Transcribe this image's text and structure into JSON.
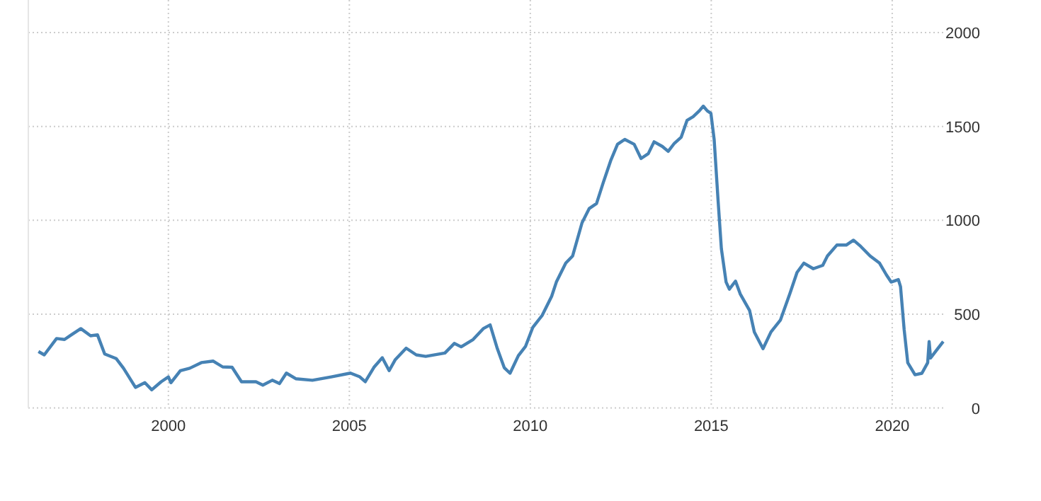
{
  "chart_data": {
    "type": "line",
    "x": [
      1996.41,
      1996.57,
      1996.91,
      1997.13,
      1997.32,
      1997.58,
      1997.85,
      1998.04,
      1998.24,
      1998.56,
      1998.76,
      1999.09,
      1999.35,
      1999.54,
      1999.8,
      2000.0,
      2000.07,
      2000.33,
      2000.59,
      2000.91,
      2001.24,
      2001.5,
      2001.76,
      2002.02,
      2002.42,
      2002.61,
      2002.87,
      2003.07,
      2003.26,
      2003.52,
      2003.98,
      2004.5,
      2005.03,
      2005.29,
      2005.44,
      2005.68,
      2005.91,
      2006.1,
      2006.27,
      2006.57,
      2006.85,
      2007.11,
      2007.64,
      2007.9,
      2008.09,
      2008.42,
      2008.7,
      2008.89,
      2009.09,
      2009.28,
      2009.44,
      2009.67,
      2009.87,
      2010.07,
      2010.33,
      2010.59,
      2010.72,
      2010.98,
      2011.17,
      2011.43,
      2011.63,
      2011.83,
      2012.02,
      2012.22,
      2012.41,
      2012.61,
      2012.87,
      2013.06,
      2013.26,
      2013.42,
      2013.65,
      2013.81,
      2013.98,
      2014.17,
      2014.33,
      2014.5,
      2014.67,
      2014.78,
      2014.89,
      2014.99,
      2015.08,
      2015.19,
      2015.28,
      2015.41,
      2015.5,
      2015.67,
      2015.8,
      2016.06,
      2016.19,
      2016.43,
      2016.65,
      2016.91,
      2017.17,
      2017.37,
      2017.56,
      2017.82,
      2018.08,
      2018.21,
      2018.47,
      2018.73,
      2018.93,
      2019.13,
      2019.39,
      2019.65,
      2019.84,
      2019.97,
      2020.17,
      2020.23,
      2020.33,
      2020.43,
      2020.63,
      2020.82,
      2020.98,
      2021.02,
      2021.06,
      2021.21,
      2021.41
    ],
    "series": [
      {
        "color": "#4682b4",
        "values": [
          301,
          283,
          370,
          365,
          390,
          423,
          385,
          390,
          288,
          263,
          212,
          110,
          135,
          97,
          140,
          166,
          135,
          199,
          212,
          242,
          250,
          219,
          217,
          140,
          140,
          122,
          148,
          130,
          186,
          156,
          148,
          166,
          186,
          166,
          140,
          217,
          268,
          199,
          258,
          319,
          283,
          275,
          293,
          344,
          326,
          365,
          423,
          443,
          316,
          215,
          185,
          279,
          329,
          430,
          494,
          595,
          671,
          772,
          810,
          987,
          1063,
          1089,
          1203,
          1317,
          1405,
          1431,
          1405,
          1329,
          1355,
          1418,
          1393,
          1367,
          1410,
          1443,
          1532,
          1552,
          1583,
          1608,
          1583,
          1570,
          1431,
          1101,
          848,
          671,
          633,
          676,
          608,
          519,
          405,
          316,
          405,
          468,
          608,
          722,
          772,
          742,
          760,
          810,
          868,
          868,
          894,
          861,
          810,
          772,
          709,
          671,
          684,
          646,
          418,
          241,
          177,
          185,
          241,
          354,
          266,
          304,
          354
        ]
      }
    ],
    "xlim": [
      1996.13,
      2021.45
    ],
    "xticks": [
      2000,
      2005,
      2010,
      2015,
      2020
    ],
    "ylim": [
      0,
      2000
    ],
    "yticks": [
      0,
      500,
      1000,
      1500,
      2000
    ],
    "grid": true
  }
}
